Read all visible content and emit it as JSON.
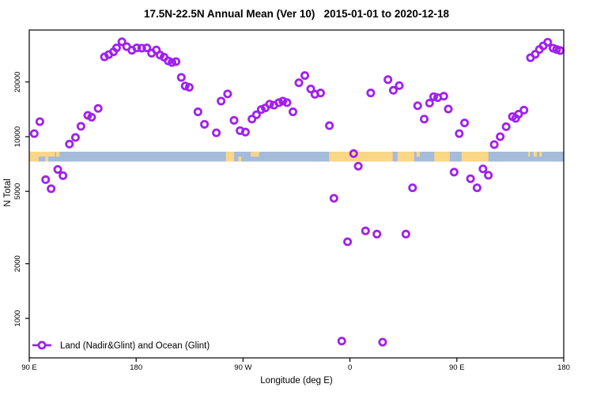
{
  "title": "17.5N-22.5N Annual Mean (Ver 10)   2015-01-01 to 2020-12-18",
  "axes": {
    "x": {
      "label": "Longitude (deg E)",
      "ticks": [
        {
          "d": 0,
          "label": "90 E"
        },
        {
          "d": 90,
          "label": "180"
        },
        {
          "d": 180,
          "label": "90 W"
        },
        {
          "d": 270,
          "label": "0"
        },
        {
          "d": 360,
          "label": "90 E"
        },
        {
          "d": 450,
          "label": "180"
        }
      ]
    },
    "y": {
      "label": "N Total",
      "scale": "log",
      "ticks": [
        {
          "value": 1000,
          "label": "1000"
        },
        {
          "value": 2000,
          "label": "2000"
        },
        {
          "value": 5000,
          "label": "5000"
        },
        {
          "value": 10000,
          "label": "10000"
        },
        {
          "value": 20000,
          "label": "20000"
        }
      ]
    }
  },
  "legend": {
    "label": "Land (Nadir&Glint) and Ocean (Glint)"
  },
  "colors": {
    "point": "#A020F0",
    "land": "#FAD687",
    "ocean": "#A5BBDA",
    "axis": "#000000",
    "background": "#FFFFFF"
  },
  "map_band": {
    "description": "coastline strip: ocean base with land segments, d = degrees east of 90E along axis",
    "land_segments": [
      {
        "d0": 0,
        "d1": 21.5,
        "part": "top"
      },
      {
        "d0": 0,
        "d1": 8,
        "part": "bottom"
      },
      {
        "d0": 13.5,
        "d1": 16,
        "part": "bottom"
      },
      {
        "d0": 22.5,
        "d1": 25.5,
        "part": "top"
      },
      {
        "d0": 165.5,
        "d1": 172.5,
        "part": "full"
      },
      {
        "d0": 176,
        "d1": 178.5,
        "part": "bottom"
      },
      {
        "d0": 186.5,
        "d1": 193.5,
        "part": "top"
      },
      {
        "d0": 252.5,
        "d1": 306,
        "part": "full"
      },
      {
        "d0": 310,
        "d1": 324,
        "part": "full"
      },
      {
        "d0": 326,
        "d1": 329,
        "part": "top"
      },
      {
        "d0": 341,
        "d1": 354,
        "part": "full"
      },
      {
        "d0": 364,
        "d1": 386.5,
        "part": "full"
      },
      {
        "d0": 420,
        "d1": 421.5,
        "part": "top"
      },
      {
        "d0": 424.5,
        "d1": 427.5,
        "part": "top"
      },
      {
        "d0": 429.5,
        "d1": 431.5,
        "part": "top"
      }
    ]
  },
  "chart_data": {
    "type": "scatter",
    "title": "17.5N-22.5N Annual Mean (Ver 10)   2015-01-01 to 2020-12-18",
    "xlabel": "Longitude (deg E)",
    "ylabel": "N Total",
    "y_scale": "log",
    "ylim": [
      600,
      40000
    ],
    "x_axis": "degrees east of 90E, axis spans 0-450 (90E..180..90W..0..90E..180)",
    "x_range_deg": [
      0,
      450
    ],
    "grid": false,
    "legend_position": "bottom-left inside plot",
    "series_name": "Land (Nadir&Glint) and Ocean (Glint)",
    "points": [
      [
        4.2,
        10400
      ],
      [
        8.9,
        12100
      ],
      [
        13.8,
        5800
      ],
      [
        18.4,
        5170
      ],
      [
        24,
        6600
      ],
      [
        28.4,
        6100
      ],
      [
        33.8,
        9100
      ],
      [
        38.9,
        9900
      ],
      [
        43.5,
        11400
      ],
      [
        49.3,
        13100
      ],
      [
        52.5,
        12800
      ],
      [
        58,
        14300
      ],
      [
        63.3,
        27500
      ],
      [
        66.9,
        28300
      ],
      [
        70.9,
        29300
      ],
      [
        73.5,
        30800
      ],
      [
        78,
        33300
      ],
      [
        82,
        31300
      ],
      [
        86.4,
        29900
      ],
      [
        90.5,
        30800
      ],
      [
        94.7,
        30700
      ],
      [
        99,
        30800
      ],
      [
        103,
        28800
      ],
      [
        107,
        30000
      ],
      [
        110.2,
        28100
      ],
      [
        113.5,
        27400
      ],
      [
        117,
        26100
      ],
      [
        120.2,
        25600
      ],
      [
        123.5,
        25900
      ],
      [
        128,
        21200
      ],
      [
        131.3,
        19000
      ],
      [
        134.7,
        18700
      ],
      [
        142,
        13700
      ],
      [
        147.5,
        11700
      ],
      [
        157.5,
        10500
      ],
      [
        161.5,
        15700
      ],
      [
        167,
        17200
      ],
      [
        172.4,
        12300
      ],
      [
        177.5,
        10800
      ],
      [
        182,
        10600
      ],
      [
        187.5,
        12500
      ],
      [
        191.3,
        13200
      ],
      [
        195.3,
        14100
      ],
      [
        198.7,
        14400
      ],
      [
        202.4,
        15100
      ],
      [
        206,
        14900
      ],
      [
        210.2,
        15400
      ],
      [
        213.5,
        15700
      ],
      [
        217,
        15400
      ],
      [
        222,
        13700
      ],
      [
        227,
        19800
      ],
      [
        232,
        21700
      ],
      [
        237,
        18300
      ],
      [
        240.5,
        17100
      ],
      [
        245.3,
        17400
      ],
      [
        252.7,
        11500
      ],
      [
        256.5,
        4580
      ],
      [
        263.1,
        750
      ],
      [
        268,
        2640
      ],
      [
        273.1,
        8070
      ],
      [
        277,
        6880
      ],
      [
        283.1,
        3030
      ],
      [
        287.5,
        17400
      ],
      [
        292.7,
        2910
      ],
      [
        297.5,
        740
      ],
      [
        302,
        20600
      ],
      [
        306.5,
        18000
      ],
      [
        311.5,
        19100
      ],
      [
        317.1,
        2910
      ],
      [
        322.7,
        5230
      ],
      [
        327,
        14800
      ],
      [
        332.5,
        12500
      ],
      [
        337,
        15300
      ],
      [
        340.5,
        16600
      ],
      [
        343.8,
        16400
      ],
      [
        349,
        16700
      ],
      [
        352.8,
        14200
      ],
      [
        357.7,
        6380
      ],
      [
        362,
        10400
      ],
      [
        366.5,
        11900
      ],
      [
        371.5,
        5870
      ],
      [
        377,
        5230
      ],
      [
        382,
        6650
      ],
      [
        386.5,
        6130
      ],
      [
        391.5,
        9050
      ],
      [
        396.5,
        10000
      ],
      [
        401.5,
        11350
      ],
      [
        406.8,
        12900
      ],
      [
        409.5,
        12600
      ],
      [
        412,
        13300
      ],
      [
        416.5,
        14000
      ],
      [
        422,
        27200
      ],
      [
        426,
        28400
      ],
      [
        429.5,
        30200
      ],
      [
        432.7,
        31600
      ],
      [
        436.5,
        33100
      ],
      [
        441,
        30700
      ],
      [
        444,
        30200
      ],
      [
        447,
        29800
      ]
    ]
  }
}
